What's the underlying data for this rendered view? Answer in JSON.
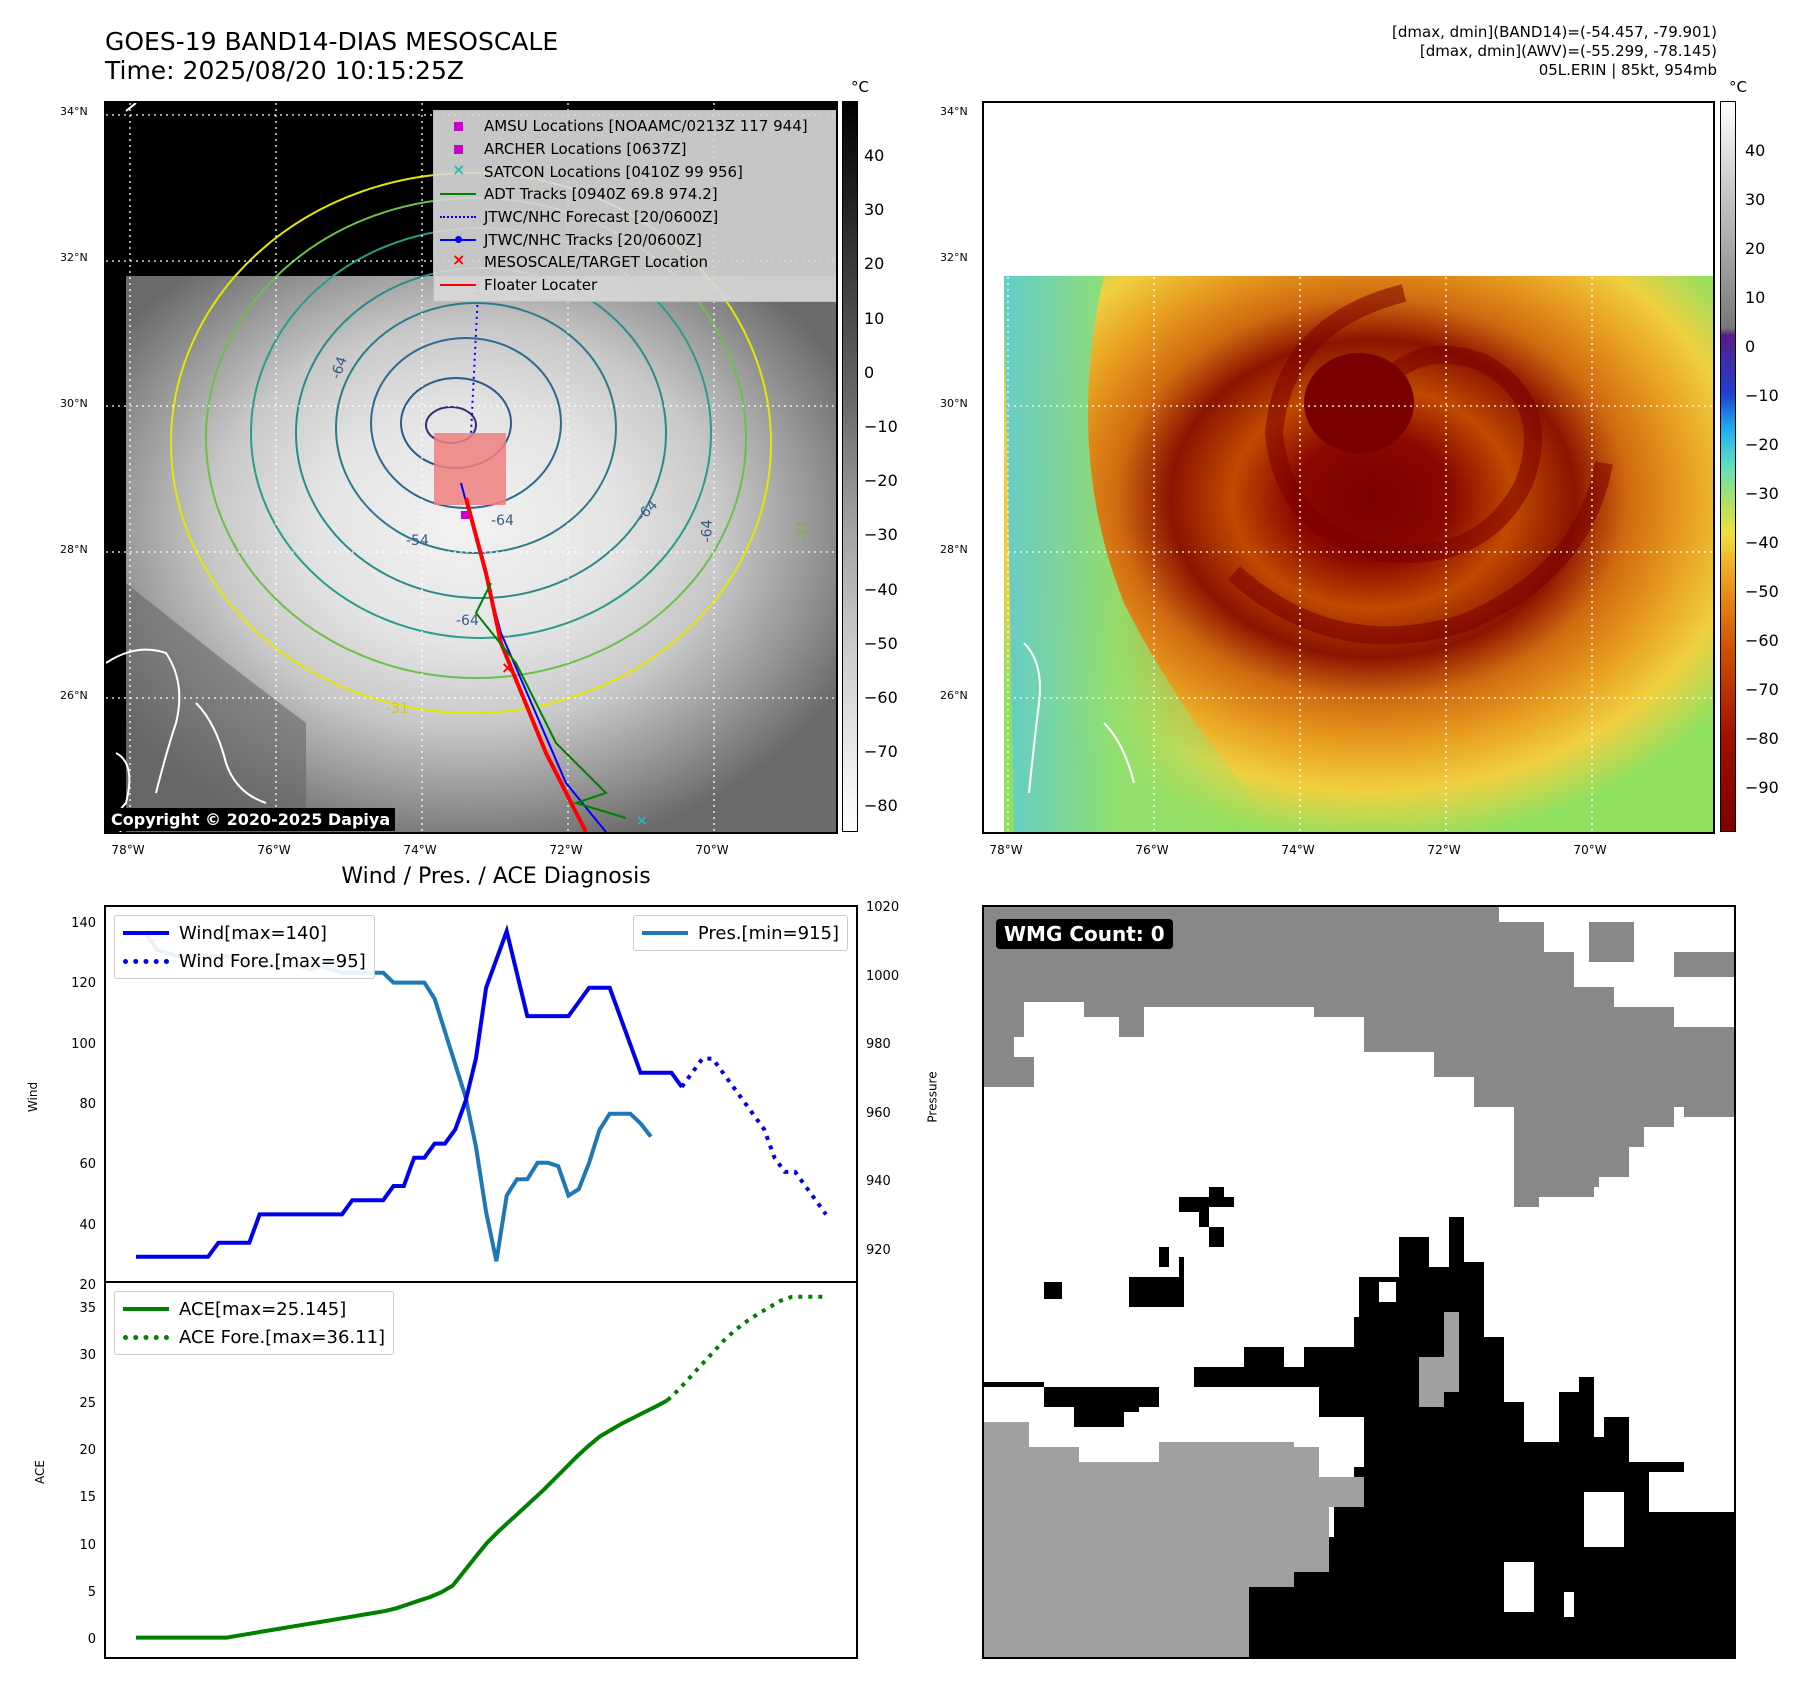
{
  "header": {
    "title_line1": "GOES-19 BAND14-DIAS MESOSCALE",
    "title_line2": "Time: 2025/08/20 10:15:25Z",
    "info_line1": "[dmax, dmin](BAND14)=(-54.457, -79.901)",
    "info_line2": "[dmax, dmin](AWV)=(-55.299, -78.145)",
    "info_line3": "05L.ERIN | 85kt, 954mb"
  },
  "map": {
    "lat_ticks": [
      "34°N",
      "32°N",
      "30°N",
      "28°N",
      "26°N"
    ],
    "lon_ticks": [
      "78°W",
      "76°W",
      "74°W",
      "72°W",
      "70°W"
    ],
    "copyright": "Copyright © 2020-2025 Dapiya",
    "colorbar_unit": "°C",
    "colorbar_left_ticks": [
      "40",
      "30",
      "20",
      "10",
      "0",
      "−10",
      "−20",
      "−30",
      "−40",
      "−50",
      "−60",
      "−70",
      "−80"
    ],
    "colorbar_right_ticks": [
      "40",
      "30",
      "20",
      "10",
      "0",
      "−10",
      "−20",
      "−30",
      "−40",
      "−50",
      "−60",
      "−70",
      "−80",
      "−90"
    ],
    "contour_labels": [
      "-64",
      "-64",
      "-64",
      "-54",
      "-64",
      "-64",
      "-31",
      "-31"
    ],
    "legend": [
      {
        "label": "AMSU Locations [NOAAMC/0213Z 117 944]",
        "color": "#cc00cc"
      },
      {
        "label": "ARCHER Locations [0637Z]",
        "color": "#cc00cc"
      },
      {
        "label": "SATCON Locations [0410Z 99 956]",
        "color": "#22bbbb"
      },
      {
        "label": "ADT Tracks [0940Z 69.8 974.2]",
        "color": "#008000"
      },
      {
        "label": "JTWC/NHC Forecast [20/0600Z]",
        "color": "#0000ff"
      },
      {
        "label": "JTWC/NHC Tracks [20/0600Z]",
        "color": "#0000ff"
      },
      {
        "label": "MESOSCALE/TARGET Location",
        "color": "#ff0000"
      },
      {
        "label": "Floater Locater",
        "color": "#ff0000"
      }
    ]
  },
  "diagnosis": {
    "title": "Wind / Pres. / ACE Diagnosis",
    "wind_legend": "Wind[max=140]",
    "wind_fore_legend": "Wind Fore.[max=95]",
    "pres_legend": "Pres.[min=915]",
    "ace_legend": "ACE[max=25.145]",
    "ace_fore_legend": "ACE Fore.[max=36.11]",
    "wind_ylabel": "Wind",
    "pres_ylabel": "Pressure",
    "ace_ylabel": "ACE",
    "wind_ticks": [
      "140",
      "120",
      "100",
      "80",
      "60",
      "40",
      "20"
    ],
    "pres_ticks": [
      "1020",
      "1000",
      "980",
      "960",
      "940",
      "920"
    ],
    "ace_ticks": [
      "35",
      "30",
      "25",
      "20",
      "15",
      "10",
      "5",
      "0"
    ]
  },
  "wmg": {
    "label": "WMG Count: 0"
  },
  "chart_data": [
    {
      "type": "line",
      "title": "Wind / Pres. / ACE Diagnosis",
      "ylabel": "Wind",
      "ylim": [
        20,
        145
      ],
      "series": [
        {
          "name": "Wind[max=140]",
          "color": "#0000ee",
          "values": [
            25,
            25,
            25,
            25,
            25,
            25,
            25,
            25,
            30,
            30,
            30,
            30,
            40,
            40,
            40,
            40,
            40,
            40,
            40,
            40,
            40,
            45,
            45,
            45,
            45,
            50,
            50,
            60,
            60,
            65,
            65,
            70,
            80,
            95,
            120,
            130,
            140,
            125,
            110,
            110,
            110,
            110,
            110,
            115,
            120,
            120,
            120,
            110,
            100,
            90,
            90,
            90,
            90,
            85
          ]
        },
        {
          "name": "Wind Fore.[max=95]",
          "color": "#0000ee",
          "style": "dotted",
          "values": [
            85,
            90,
            95,
            95,
            90,
            85,
            80,
            75,
            70,
            60,
            55,
            55,
            50,
            45,
            40
          ]
        }
      ]
    },
    {
      "type": "line",
      "ylabel": "Pressure",
      "ylim": [
        912,
        1020
      ],
      "series": [
        {
          "name": "Pres.[min=915]",
          "color": "#1f77b4",
          "values": [
            1015,
            1015,
            1010,
            1009,
            1008,
            1008,
            1008,
            1008,
            1008,
            1008,
            1007,
            1006,
            1005,
            1005,
            1005,
            1005,
            1005,
            1004,
            1005,
            1004,
            1003,
            1003,
            1003,
            1003,
            1003,
            1000,
            1000,
            1000,
            1000,
            995,
            985,
            975,
            965,
            950,
            930,
            915,
            935,
            940,
            940,
            945,
            945,
            944,
            935,
            937,
            945,
            955,
            960,
            960,
            960,
            957,
            953
          ]
        }
      ]
    },
    {
      "type": "line",
      "ylabel": "ACE",
      "ylim": [
        -1,
        36.5
      ],
      "series": [
        {
          "name": "ACE[max=25.145]",
          "color": "#008000",
          "values": [
            0,
            0,
            0,
            0,
            0,
            0,
            0,
            0,
            0,
            0.2,
            0.4,
            0.6,
            0.8,
            1.0,
            1.2,
            1.4,
            1.6,
            1.8,
            2.0,
            2.2,
            2.4,
            2.6,
            2.8,
            3.1,
            3.5,
            3.9,
            4.3,
            4.8,
            5.5,
            7,
            8.5,
            10,
            11.2,
            12.3,
            13.4,
            14.5,
            15.6,
            16.8,
            18,
            19.2,
            20.3,
            21.3,
            22,
            22.7,
            23.3,
            23.9,
            24.5,
            25.145
          ]
        },
        {
          "name": "ACE Fore.[max=36.11]",
          "color": "#008000",
          "style": "dotted",
          "values": [
            25.145,
            26.3,
            27.6,
            28.9,
            30.2,
            31.5,
            32.6,
            33.5,
            34.3,
            35,
            35.7,
            36.11,
            36.11,
            36.11,
            36.11
          ]
        }
      ]
    }
  ]
}
